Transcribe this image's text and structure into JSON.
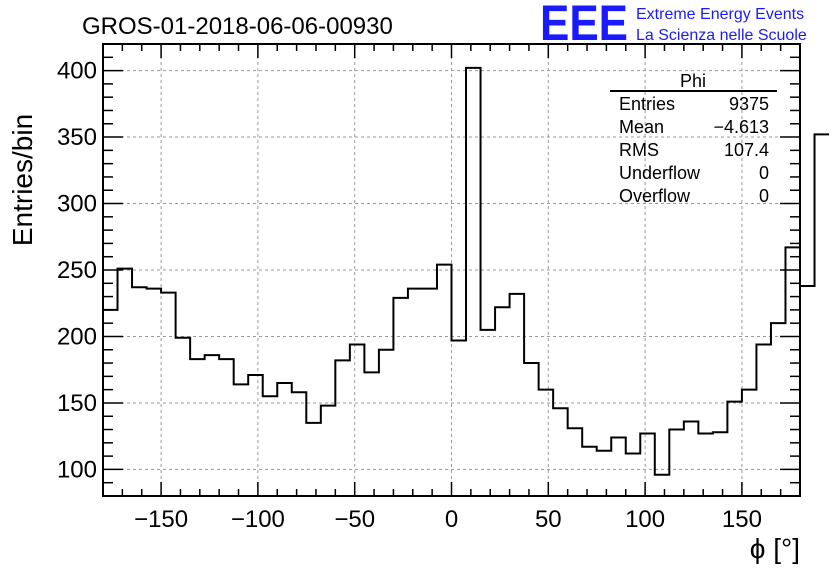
{
  "header": {
    "run_title": "GROS-01-2018-06-06-00930",
    "brand_logo": "EEE",
    "brand_line1": "Extreme Energy Events",
    "brand_line2": "La Scienza nelle Scuole",
    "brand_color": "#1a1aff"
  },
  "stats_box": {
    "title": "Phi",
    "rows": [
      {
        "label": "Entries",
        "value": "9375"
      },
      {
        "label": "Mean",
        "value": "−4.613"
      },
      {
        "label": "RMS",
        "value": "107.4"
      },
      {
        "label": "Underflow",
        "value": "0"
      },
      {
        "label": "Overflow",
        "value": "0"
      }
    ]
  },
  "chart_data": {
    "type": "bar",
    "title": "GROS-01-2018-06-06-00930",
    "xlabel": "ϕ [°]",
    "ylabel": "Entries/bin",
    "xlim": [
      -180,
      180
    ],
    "ylim": [
      80,
      420
    ],
    "grid": true,
    "x_ticks": [
      -150,
      -100,
      -50,
      0,
      50,
      100,
      150
    ],
    "x_tick_labels": [
      "−150",
      "−100",
      "−50",
      "0",
      "50",
      "100",
      "150"
    ],
    "y_ticks": [
      100,
      150,
      200,
      250,
      300,
      350,
      400
    ],
    "y_tick_labels": [
      "100",
      "150",
      "200",
      "250",
      "300",
      "350",
      "400"
    ],
    "bin_width": 7.5,
    "bin_edges_start": -180,
    "values": [
      220,
      251,
      237,
      236,
      233,
      199,
      183,
      186,
      183,
      164,
      171,
      155,
      165,
      158,
      135,
      148,
      182,
      194,
      173,
      190,
      229,
      236,
      236,
      254,
      197,
      402,
      205,
      222,
      232,
      180,
      160,
      146,
      131,
      117,
      114,
      124,
      112,
      127,
      96,
      130,
      136,
      127,
      128,
      151,
      160,
      194,
      210,
      267,
      238,
      352
    ]
  }
}
